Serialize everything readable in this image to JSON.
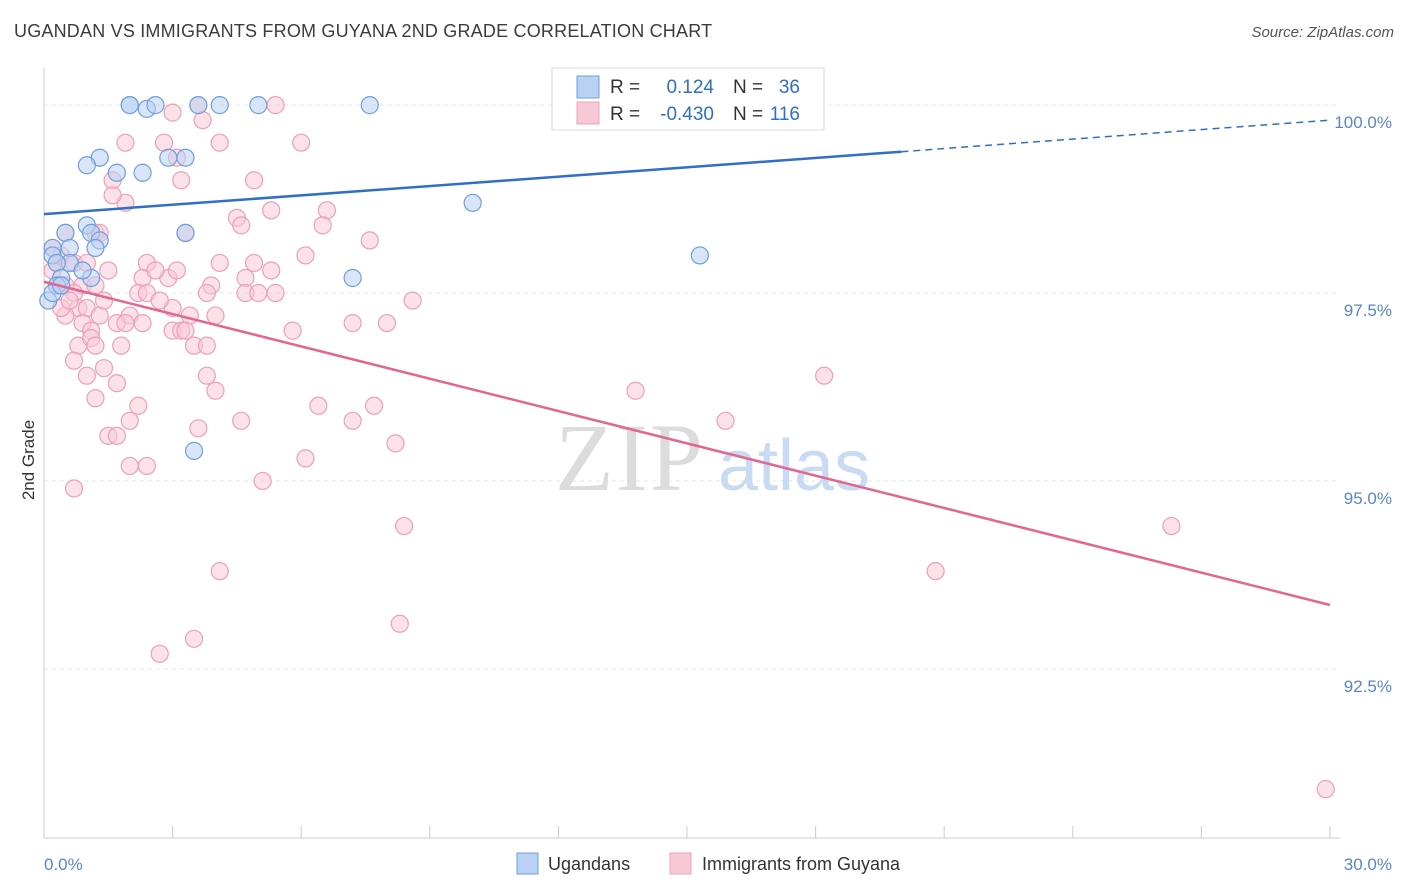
{
  "header": {
    "title": "UGANDAN VS IMMIGRANTS FROM GUYANA 2ND GRADE CORRELATION CHART",
    "source": "Source: ZipAtlas.com"
  },
  "watermark": {
    "zip": "ZIP",
    "atlas": "atlas"
  },
  "chart_data": {
    "type": "scatter",
    "ylabel": "2nd Grade",
    "xlim": [
      0,
      30
    ],
    "ylim": [
      90.25,
      100.6
    ],
    "x_tick_labels": [
      "0.0%",
      "30.0%"
    ],
    "y_ticks": [
      {
        "value": 100.0,
        "label": "100.0%"
      },
      {
        "value": 97.5,
        "label": "97.5%"
      },
      {
        "value": 95.0,
        "label": "95.0%"
      },
      {
        "value": 92.5,
        "label": "92.5%"
      }
    ],
    "legend": [
      {
        "r_label": "R =",
        "r_value": "0.124",
        "n_label": "N =",
        "n_value": "36"
      },
      {
        "r_label": "R =",
        "r_value": "-0.430",
        "n_label": "N =",
        "n_value": "116"
      }
    ],
    "series": [
      {
        "name": "Ugandans",
        "color": "#6f9fdc",
        "fill": "#b9d1f3",
        "line_color": "#2f6fc6",
        "trend": {
          "x0": 0,
          "y0": 98.55,
          "x1": 20,
          "y1": 99.38,
          "x_dash_end": 30,
          "y_dash_end": 99.8
        },
        "points": [
          [
            2.0,
            100.0
          ],
          [
            2.0,
            100.0
          ],
          [
            2.4,
            99.95
          ],
          [
            2.6,
            100.0
          ],
          [
            3.6,
            100.0
          ],
          [
            4.1,
            100.0
          ],
          [
            5.0,
            100.0
          ],
          [
            7.6,
            100.0
          ],
          [
            1.3,
            99.3
          ],
          [
            1.0,
            99.2
          ],
          [
            2.3,
            99.1
          ],
          [
            1.7,
            99.1
          ],
          [
            2.9,
            99.3
          ],
          [
            3.3,
            99.3
          ],
          [
            10.0,
            98.7
          ],
          [
            1.0,
            98.4
          ],
          [
            0.5,
            98.3
          ],
          [
            1.1,
            98.3
          ],
          [
            1.3,
            98.2
          ],
          [
            3.3,
            98.3
          ],
          [
            0.2,
            98.1
          ],
          [
            0.6,
            98.1
          ],
          [
            1.2,
            98.1
          ],
          [
            0.2,
            98.0
          ],
          [
            0.6,
            97.9
          ],
          [
            0.3,
            97.9
          ],
          [
            0.4,
            97.7
          ],
          [
            1.1,
            97.7
          ],
          [
            0.3,
            97.6
          ],
          [
            7.2,
            97.7
          ],
          [
            15.3,
            98.0
          ],
          [
            0.1,
            97.4
          ],
          [
            0.2,
            97.5
          ],
          [
            0.4,
            97.6
          ],
          [
            3.5,
            95.4
          ],
          [
            0.9,
            97.8
          ]
        ]
      },
      {
        "name": "Immigrants from Guyana",
        "color": "#eda0b8",
        "fill": "#f7c8d6",
        "line_color": "#e36590",
        "trend": {
          "x0": 0,
          "y0": 97.65,
          "x1": 30,
          "y1": 93.35
        },
        "points": [
          [
            3.6,
            100.0
          ],
          [
            5.4,
            100.0
          ],
          [
            3.0,
            99.9
          ],
          [
            3.7,
            99.8
          ],
          [
            4.1,
            99.5
          ],
          [
            2.8,
            99.5
          ],
          [
            1.9,
            99.5
          ],
          [
            6.0,
            99.5
          ],
          [
            3.1,
            99.3
          ],
          [
            3.2,
            99.0
          ],
          [
            1.6,
            99.0
          ],
          [
            4.9,
            99.0
          ],
          [
            1.9,
            98.7
          ],
          [
            1.6,
            98.8
          ],
          [
            5.3,
            98.6
          ],
          [
            6.6,
            98.6
          ],
          [
            3.3,
            98.3
          ],
          [
            4.5,
            98.5
          ],
          [
            4.6,
            98.4
          ],
          [
            6.5,
            98.4
          ],
          [
            7.6,
            98.2
          ],
          [
            1.2,
            98.3
          ],
          [
            1.3,
            98.3
          ],
          [
            2.4,
            97.9
          ],
          [
            6.1,
            98.0
          ],
          [
            0.2,
            98.1
          ],
          [
            0.4,
            98.0
          ],
          [
            0.5,
            98.3
          ],
          [
            0.3,
            97.9
          ],
          [
            0.7,
            97.9
          ],
          [
            0.2,
            97.8
          ],
          [
            1.5,
            97.8
          ],
          [
            2.9,
            97.7
          ],
          [
            3.1,
            97.8
          ],
          [
            4.1,
            97.9
          ],
          [
            4.9,
            97.9
          ],
          [
            5.3,
            97.8
          ],
          [
            4.7,
            97.7
          ],
          [
            0.5,
            97.6
          ],
          [
            0.9,
            97.6
          ],
          [
            3.9,
            97.6
          ],
          [
            1.2,
            97.6
          ],
          [
            2.3,
            97.7
          ],
          [
            2.2,
            97.5
          ],
          [
            2.4,
            97.5
          ],
          [
            3.8,
            97.5
          ],
          [
            4.7,
            97.5
          ],
          [
            5.4,
            97.5
          ],
          [
            8.6,
            97.4
          ],
          [
            0.7,
            97.5
          ],
          [
            0.8,
            97.3
          ],
          [
            1.0,
            97.3
          ],
          [
            1.3,
            97.2
          ],
          [
            1.4,
            97.4
          ],
          [
            3.0,
            97.3
          ],
          [
            3.4,
            97.2
          ],
          [
            4.0,
            97.2
          ],
          [
            7.2,
            97.1
          ],
          [
            8.0,
            97.1
          ],
          [
            1.7,
            97.1
          ],
          [
            2.0,
            97.2
          ],
          [
            2.3,
            97.1
          ],
          [
            0.9,
            97.1
          ],
          [
            1.1,
            97.0
          ],
          [
            3.0,
            97.0
          ],
          [
            3.2,
            97.0
          ],
          [
            5.8,
            97.0
          ],
          [
            0.8,
            96.8
          ],
          [
            1.1,
            96.9
          ],
          [
            1.2,
            96.8
          ],
          [
            1.8,
            96.8
          ],
          [
            3.5,
            96.8
          ],
          [
            3.8,
            96.8
          ],
          [
            0.7,
            96.6
          ],
          [
            1.0,
            96.4
          ],
          [
            1.7,
            96.3
          ],
          [
            3.8,
            96.4
          ],
          [
            4.0,
            96.2
          ],
          [
            13.8,
            96.2
          ],
          [
            18.2,
            96.4
          ],
          [
            1.2,
            96.1
          ],
          [
            2.2,
            96.0
          ],
          [
            6.4,
            96.0
          ],
          [
            7.7,
            96.0
          ],
          [
            15.9,
            95.8
          ],
          [
            2.0,
            95.8
          ],
          [
            3.6,
            95.7
          ],
          [
            4.6,
            95.8
          ],
          [
            7.2,
            95.8
          ],
          [
            1.5,
            95.6
          ],
          [
            1.7,
            95.6
          ],
          [
            8.2,
            95.5
          ],
          [
            2.0,
            95.2
          ],
          [
            2.4,
            95.2
          ],
          [
            6.1,
            95.3
          ],
          [
            5.1,
            95.0
          ],
          [
            0.7,
            94.9
          ],
          [
            8.4,
            94.4
          ],
          [
            26.3,
            94.4
          ],
          [
            4.1,
            93.8
          ],
          [
            20.8,
            93.8
          ],
          [
            8.3,
            93.1
          ],
          [
            3.5,
            92.9
          ],
          [
            2.7,
            92.7
          ],
          [
            29.9,
            90.9
          ],
          [
            1.9,
            97.1
          ],
          [
            0.5,
            97.2
          ],
          [
            2.7,
            97.4
          ],
          [
            0.3,
            97.6
          ],
          [
            1.0,
            97.9
          ],
          [
            0.4,
            97.3
          ],
          [
            1.4,
            96.5
          ],
          [
            3.3,
            97.0
          ],
          [
            5.0,
            97.5
          ],
          [
            2.6,
            97.8
          ],
          [
            0.6,
            97.4
          ]
        ]
      }
    ]
  }
}
